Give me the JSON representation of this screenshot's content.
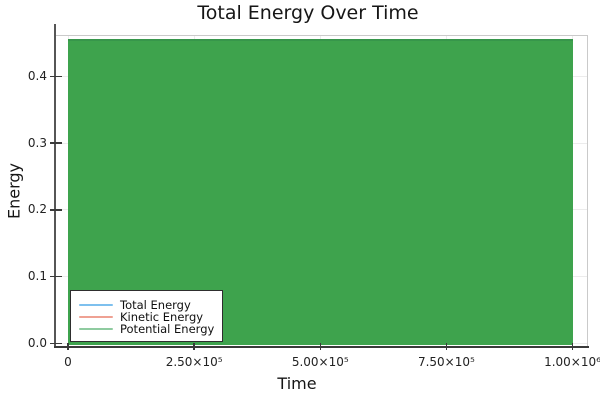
{
  "title": "Total Energy Over Time",
  "axes": {
    "x_label": "Time",
    "y_label": "Energy",
    "x_ticks": [
      {
        "value": 0,
        "label": "0"
      },
      {
        "value": 250000,
        "label": "2.50×10⁵"
      },
      {
        "value": 500000,
        "label": "5.00×10⁵"
      },
      {
        "value": 750000,
        "label": "7.50×10⁵"
      },
      {
        "value": 1000000,
        "label": "1.00×10⁶"
      }
    ],
    "y_ticks": [
      {
        "value": 0.0,
        "label": "0.0"
      },
      {
        "value": 0.1,
        "label": "0.1"
      },
      {
        "value": 0.2,
        "label": "0.2"
      },
      {
        "value": 0.3,
        "label": "0.3"
      },
      {
        "value": 0.4,
        "label": "0.4"
      }
    ]
  },
  "legend": {
    "position": "bottom-left",
    "items": [
      {
        "label": "Total Energy",
        "line_color": "#7EC0EE"
      },
      {
        "label": "Kinetic Energy",
        "line_color": "#EFA193"
      },
      {
        "label": "Potential Energy",
        "line_color": "#8FCBA0"
      }
    ]
  },
  "colors": {
    "area_fill": "#3EA34D",
    "area_edge": "#37964B",
    "frame": "#CACACA",
    "grid": "#ECECEC",
    "spine": "#3A3A3A",
    "text": "#161616",
    "legend_border": "#2E2E2E",
    "legend_bg": "#FFFFFF"
  },
  "chart_data": {
    "type": "area",
    "title": "Total Energy Over Time",
    "xlabel": "Time",
    "ylabel": "Energy",
    "xlim": [
      -25000,
      1031000
    ],
    "ylim": [
      -0.005,
      0.465
    ],
    "grid": true,
    "legend_position": "bottom-left",
    "x_tick_values": [
      0,
      250000,
      500000,
      750000,
      1000000
    ],
    "y_tick_values": [
      0.0,
      0.1,
      0.2,
      0.3,
      0.4
    ],
    "series": [
      {
        "name": "Total Energy",
        "color": "#7EC0EE",
        "type": "line",
        "behavior": "constant",
        "value": 0.456,
        "x_start": 0,
        "x_end": 1000000,
        "visibility": "hidden behind potential-energy fill"
      },
      {
        "name": "Kinetic Energy",
        "color": "#EFA193",
        "type": "line",
        "behavior": "dense oscillation",
        "y_min": 0.0,
        "y_max": 0.456,
        "x_start": 0,
        "x_end": 1000000,
        "visibility": "hidden behind potential-energy fill"
      },
      {
        "name": "Potential Energy",
        "color": "#8FCBA0",
        "fill_color": "#3EA34D",
        "type": "line",
        "behavior": "dense oscillation rendering as a solid filled block",
        "y_min": 0.0,
        "y_max": 0.456,
        "x_start": 0,
        "x_end": 1000000,
        "visibility": "appears as solid green rectangle from y=0 to y≈0.456 over full x range"
      }
    ]
  }
}
